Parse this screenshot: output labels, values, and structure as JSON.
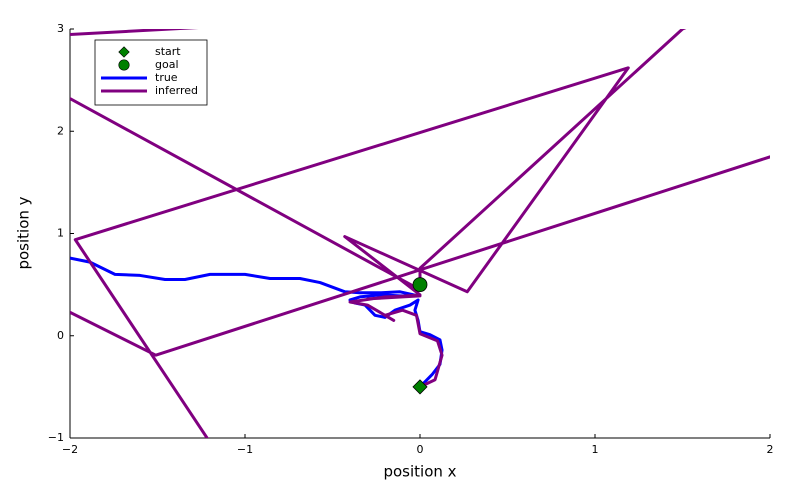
{
  "chart_data": {
    "type": "line",
    "x_label": "position x",
    "y_label": "position y",
    "xlim": [
      -2,
      2
    ],
    "ylim": [
      -1,
      3
    ],
    "xticks": [
      {
        "value": -2,
        "label": "−2"
      },
      {
        "value": -1,
        "label": "−1"
      },
      0,
      1,
      2
    ],
    "yticks": [
      {
        "value": -1,
        "label": "−1"
      },
      0,
      1,
      2,
      3
    ],
    "grid": false,
    "legend": "top-left",
    "series": [
      {
        "name": "true",
        "color": "#0000ff",
        "x": [
          0,
          0.069,
          0.114,
          0.126,
          0.114,
          0.057,
          0,
          -0.011,
          -0.029,
          -0.011,
          -0.057,
          -0.143,
          -0.2,
          -0.257,
          -0.314,
          -0.371,
          -0.4,
          -0.343,
          -0.229,
          -0.114,
          -0.011,
          -0.114,
          -0.229,
          -0.343,
          -0.429,
          -0.571,
          -0.686,
          -0.857,
          -1.0,
          -1.2,
          -1.343,
          -1.457,
          -1.6,
          -1.743,
          -1.886,
          -2.0
        ],
        "values": [
          -0.5,
          -0.38,
          -0.28,
          -0.14,
          -0.04,
          0.01,
          0.04,
          0.15,
          0.25,
          0.35,
          0.3,
          0.25,
          0.18,
          0.2,
          0.3,
          0.32,
          0.35,
          0.38,
          0.4,
          0.39,
          0.39,
          0.43,
          0.42,
          0.42,
          0.43,
          0.52,
          0.56,
          0.56,
          0.6,
          0.6,
          0.55,
          0.55,
          0.59,
          0.6,
          0.72,
          0.76
        ]
      },
      {
        "name": "inferred",
        "color": "#800080",
        "x": [
          0,
          0.086,
          0.126,
          0.1,
          0,
          -0.02,
          -0.1,
          -0.2,
          -0.15,
          -0.3,
          -0.4,
          -0.2,
          0,
          -0.3,
          0,
          -0.43,
          0.27,
          1.19,
          -1.97,
          -1.1,
          -3.0,
          -2.2,
          -1.51,
          2.2,
          2.2,
          1.5,
          0,
          0,
          -2.3,
          -2.5,
          -1.1
        ],
        "values": [
          -0.5,
          -0.43,
          -0.19,
          -0.05,
          0.02,
          0.2,
          0.25,
          0.2,
          0.15,
          0.3,
          0.33,
          0.38,
          0.39,
          0.36,
          0.4,
          0.97,
          0.43,
          2.62,
          0.94,
          -1.3,
          -1.3,
          0.4,
          -0.19,
          1.86,
          3.5,
          3.0,
          0.66,
          0.45,
          2.6,
          2.9,
          3.03
        ]
      },
      {
        "name": "start",
        "color": "#008000",
        "marker": "diamond",
        "x": [
          0
        ],
        "values": [
          -0.5
        ]
      },
      {
        "name": "goal",
        "color": "#008000",
        "marker": "circle",
        "x": [
          0
        ],
        "values": [
          0.5
        ]
      }
    ]
  }
}
